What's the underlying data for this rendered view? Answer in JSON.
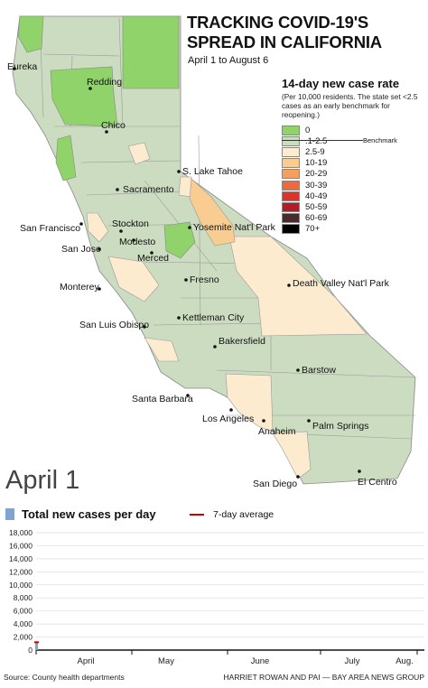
{
  "title": "TRACKING COVID-19'S SPREAD IN CALIFORNIA",
  "subtitle": "April 1 to August 6",
  "legend": {
    "title": "14-day new case rate",
    "note": "(Per 10,000 residents. The state set <2.5 cases as an early benchmark for reopening.)",
    "benchmark_label": "Benchmark",
    "items": [
      {
        "label": "0",
        "color": "#8fd36a"
      },
      {
        "label": ".1-2.5",
        "color": "#ccdcc0"
      },
      {
        "label": "2.5-9",
        "color": "#fdebd0"
      },
      {
        "label": "10-19",
        "color": "#f9cd91"
      },
      {
        "label": "20-29",
        "color": "#f5a15e"
      },
      {
        "label": "30-39",
        "color": "#ee6a3c"
      },
      {
        "label": "40-49",
        "color": "#e1322a"
      },
      {
        "label": "50-59",
        "color": "#b51d26"
      },
      {
        "label": "60-69",
        "color": "#4a2a2a"
      },
      {
        "label": "70+",
        "color": "#000000"
      }
    ]
  },
  "map_data": {
    "cities": [
      "Eureka",
      "Redding",
      "Chico",
      "S. Lake Tahoe",
      "Sacramento",
      "San Francisco",
      "Stockton",
      "Yosemite Nat'l Park",
      "San Jose",
      "Modesto",
      "Merced",
      "Fresno",
      "Monterey",
      "Death Valley Nat'l Park",
      "Kettleman City",
      "Bakersfield",
      "San Luis Obispo",
      "Barstow",
      "Santa Barbara",
      "Los Angeles",
      "Palm Springs",
      "Anaheim",
      "San Diego",
      "El Centro"
    ]
  },
  "date_label": "April 1",
  "chart_data": {
    "type": "bar",
    "series": [
      {
        "name": "Total new cases per day",
        "values": [
          1200
        ]
      },
      {
        "name": "7-day average",
        "values": [
          1200
        ]
      }
    ],
    "y_ticks": [
      "0",
      "2,000",
      "4,000",
      "6,000",
      "8,000",
      "10,000",
      "12,000",
      "14,000",
      "16,000",
      "18,000"
    ],
    "ylim": [
      0,
      18000
    ],
    "months": [
      "April",
      "May",
      "June",
      "July",
      "Aug."
    ]
  },
  "footer": {
    "source": "Source: County health departments",
    "credit": "HARRIET ROWAN AND PAI — BAY AREA NEWS GROUP"
  }
}
